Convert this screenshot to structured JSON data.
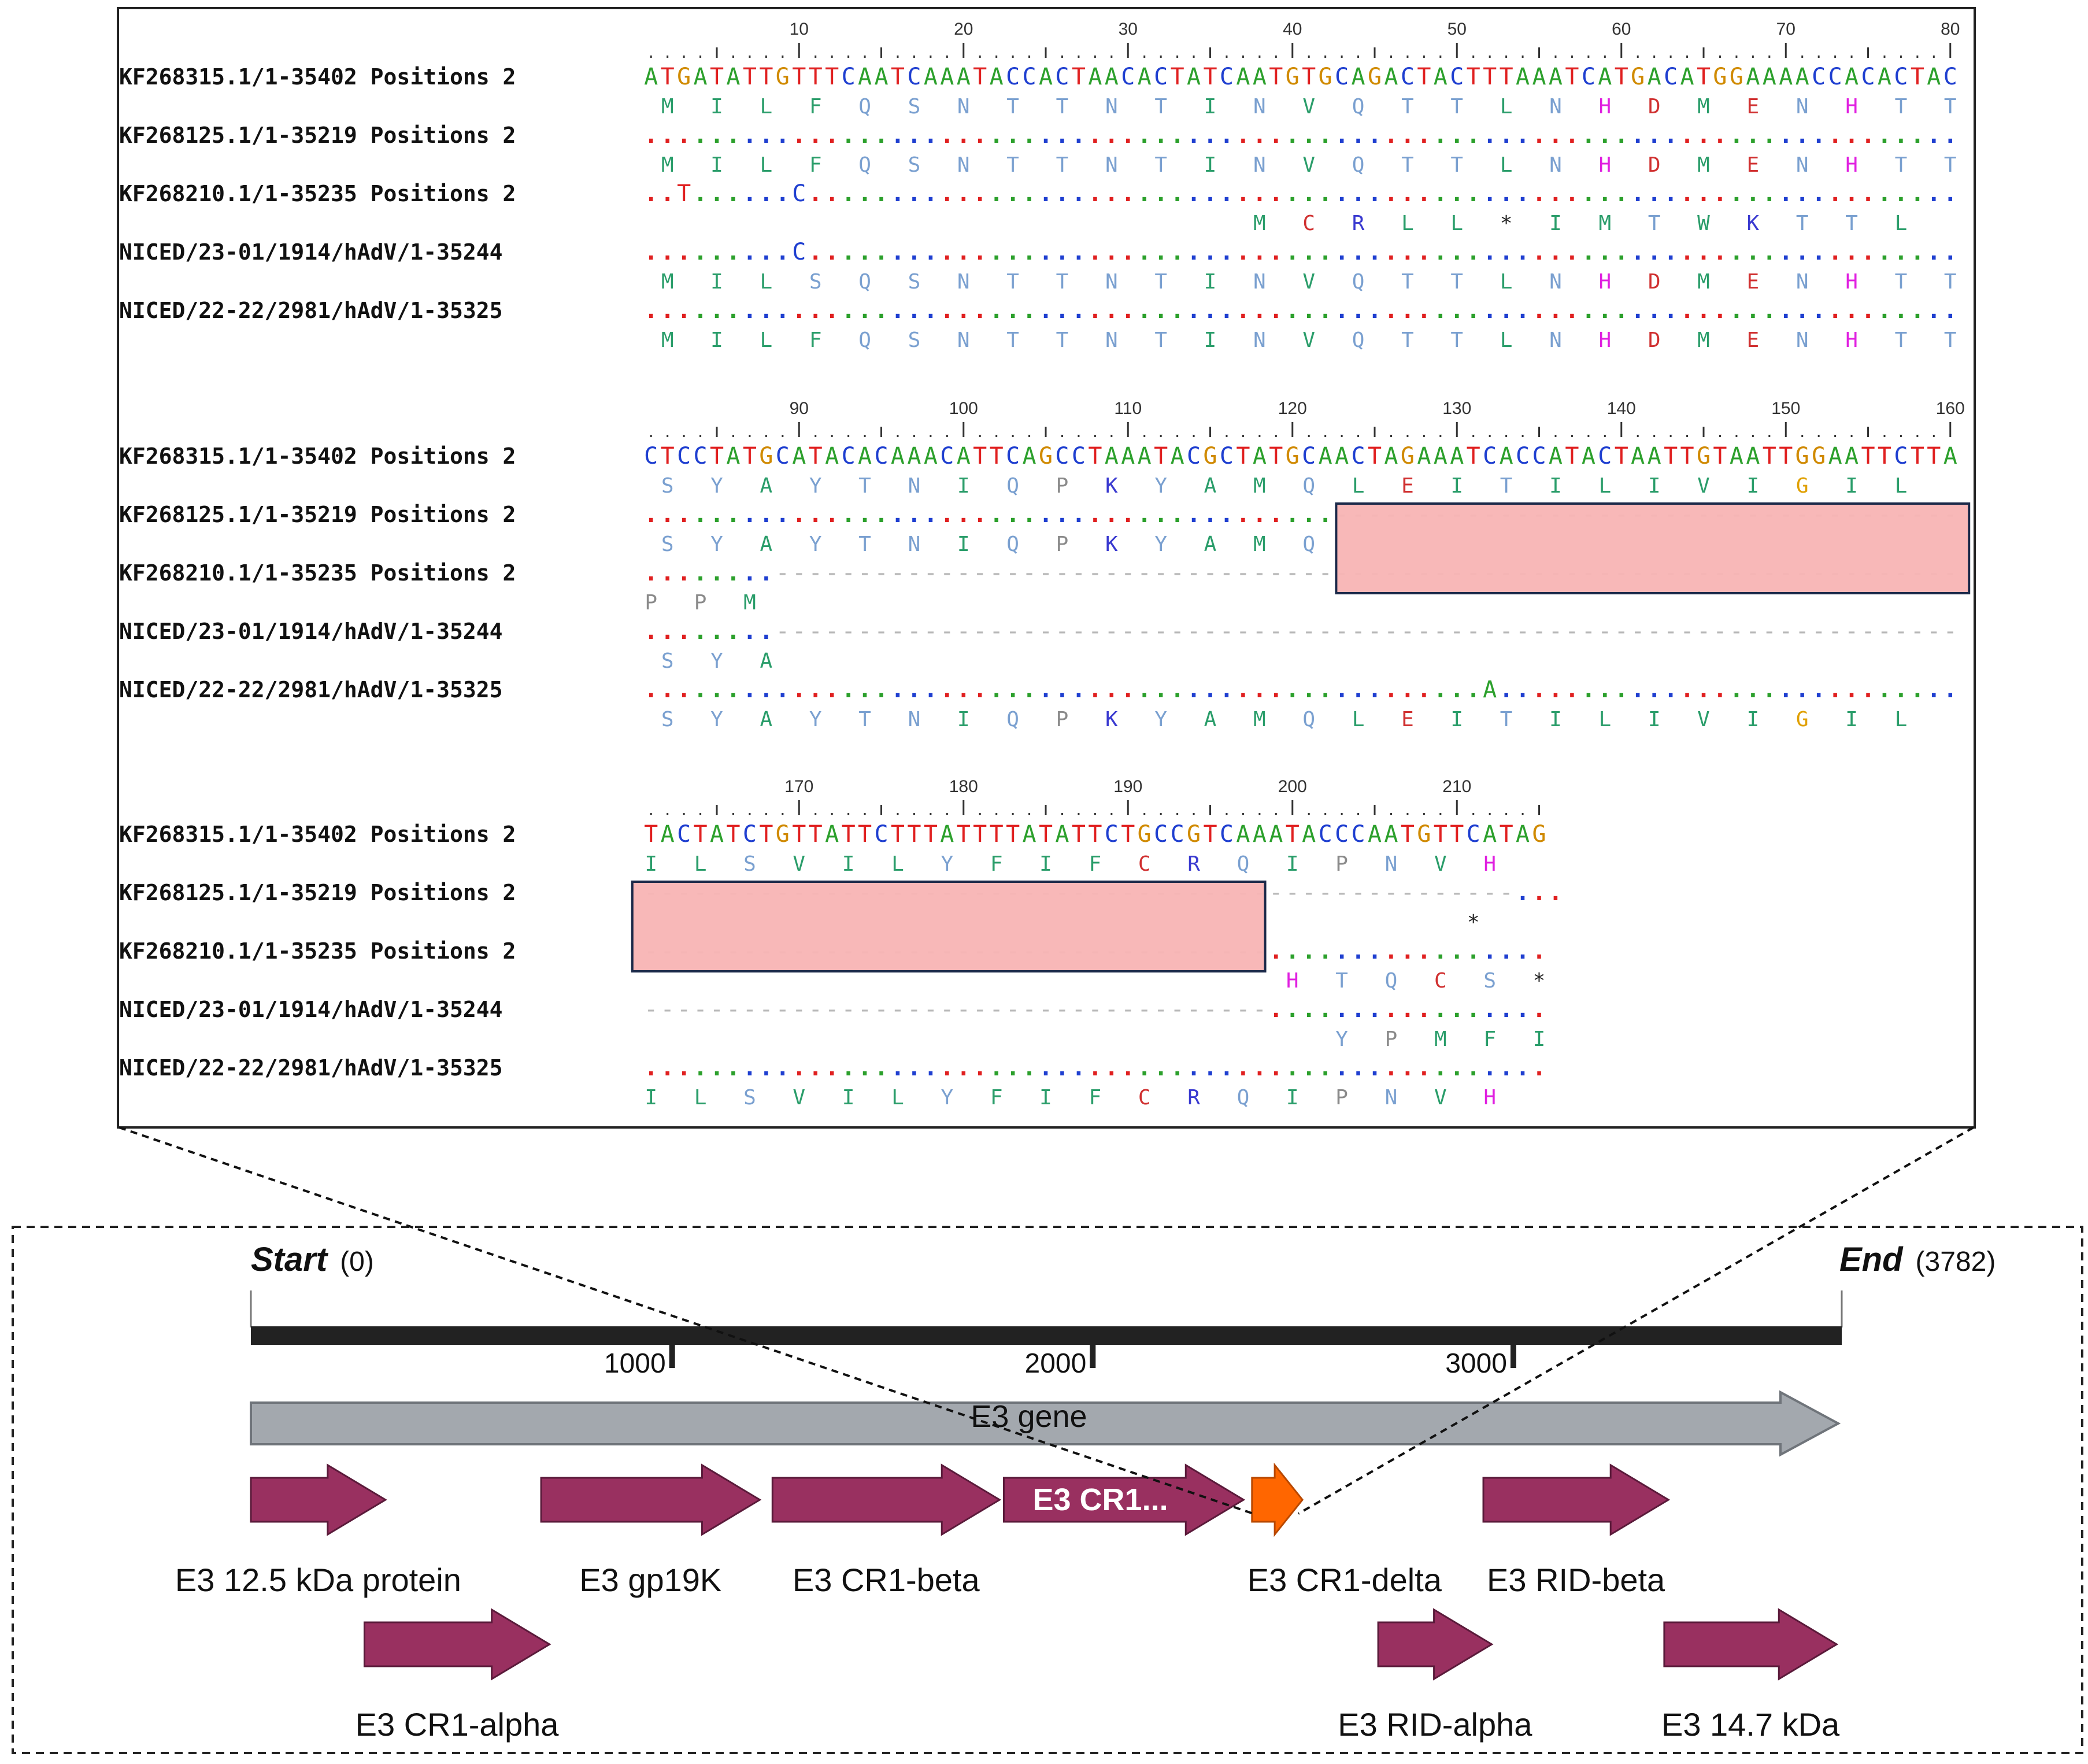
{
  "alignment": {
    "blocks": [
      {
        "start": 1,
        "ruler": [
          "10",
          "20",
          "30",
          "40",
          "50",
          "60",
          "70",
          "80"
        ],
        "rows": [
          {
            "name": "KF268315.1/1-35402 Positions 2",
            "nt": "ATGATATTGTTTCAATCAAATACCACTAACACTATCAATGTGCAGACTACTTTAAATCATGACATGGAAAACCACACTAC",
            "aa": " M  I  L  F  Q  S  N  T  T  N  T  I  N  V  Q  T  T  L  N  H  D  M  E  N  H  T  T"
          },
          {
            "name": "KF268125.1/1-35219 Positions 2",
            "nt": "................................................................................",
            "aa": " M  I  L  F  Q  S  N  T  T  N  T  I  N  V  Q  T  T  L  N  H  D  M  E  N  H  T  T"
          },
          {
            "name": "KF268210.1/1-35235 Positions 2",
            "nt": "..T......C......................................................................",
            "aa": "                                     M  C  R  L  L  *  I  M  T  W  K  T  T  L"
          },
          {
            "name": "NICED/23-01/1914/hAdV/1-35244",
            "nt": ".........C......................................................................",
            "aa": " M  I  L  S  Q  S  N  T  T  N  T  I  N  V  Q  T  T  L  N  H  D  M  E  N  H  T  T"
          },
          {
            "name": "NICED/22-22/2981/hAdV/1-35325",
            "nt": "................................................................................",
            "aa": " M  I  L  F  Q  S  N  T  T  N  T  I  N  V  Q  T  T  L  N  H  D  M  E  N  H  T  T"
          }
        ]
      },
      {
        "start": 81,
        "ruler": [
          "90",
          "100",
          "110",
          "120",
          "130",
          "140",
          "150",
          "160"
        ],
        "rows": [
          {
            "name": "KF268315.1/1-35402 Positions 2",
            "nt": "CTCCTATGCATACACAAACATTCAGCCTAAATACGCTATGCAACTAGAAATCACCATACTAATTGTAATTGGAATTCTTA",
            "aa": " S  Y  A  Y  T  N  I  Q  P  K  Y  A  M  Q  L  E  I  T  I  L  I  V  I  G  I  L"
          },
          {
            "name": "KF268125.1/1-35219 Positions 2",
            "nt": "..........................................--------------------------------------",
            "aa": " S  Y  A  Y  T  N  I  Q  P  K  Y  A  M  Q"
          },
          {
            "name": "KF268210.1/1-35235 Positions 2",
            "nt": "........------------------------------------------------------------------------",
            "aa": "P  P  M"
          },
          {
            "name": "NICED/23-01/1914/hAdV/1-35244",
            "nt": "........------------------------------------------------------------------------",
            "aa": " S  Y  A"
          },
          {
            "name": "NICED/22-22/2981/hAdV/1-35325",
            "nt": "...................................................A............................",
            "aa": " S  Y  A  Y  T  N  I  Q  P  K  Y  A  M  Q  L  E  I  T  I  L  I  V  I  G  I  L"
          }
        ]
      },
      {
        "start": 161,
        "ruler": [
          "170",
          "180",
          "190",
          "200",
          "210"
        ],
        "rows": [
          {
            "name": "KF268315.1/1-35402 Positions 2",
            "nt": "TACTATCTGTTATTCTTTATTTTATATTCTGCCGTCAAATACCCAATGTTCATAG",
            "aa": "I  L  S  V  I  L  Y  F  I  F  C  R  Q  I  P  N  V  H"
          },
          {
            "name": "KF268125.1/1-35219 Positions 2",
            "nt": "-----------------------------------------------------...",
            "aa": "                                                  *"
          },
          {
            "name": "KF268210.1/1-35235 Positions 2",
            "nt": "--------------------------------------.................",
            "aa": "                                       H  T  Q  C  S  *"
          },
          {
            "name": "NICED/23-01/1914/hAdV/1-35244",
            "nt": "--------------------------------------.................",
            "aa": "                                          Y  P  M  F  I"
          },
          {
            "name": "NICED/22-22/2981/hAdV/1-35325",
            "nt": ".......................................................",
            "aa": "I  L  S  V  I  L  Y  F  I  F  C  R  Q  I  P  N  V  H"
          }
        ]
      }
    ],
    "nt_colors": {
      "A": "#2ca02c",
      "C": "#1f3fd0",
      "G": "#d08a00",
      "T": "#e02020"
    },
    "aa_colors": {
      "H": "#e020e0",
      "D": "#d03030",
      "E": "#d03030",
      "C": "#d03030",
      "R": "#3a3ad0",
      "K": "#3a3ad0",
      "G": "#e0a000",
      "P": "#8a8a8a",
      "*": "#222222",
      "default": "#2a9d6a",
      "polar": "#7aa0d0"
    },
    "deletion_color": "#f8b4b4"
  },
  "gene_map": {
    "start_label": "Start",
    "start_value": "(0)",
    "end_label": "End",
    "end_value": "(3782)",
    "ticks": [
      "1000",
      "2000",
      "3000"
    ],
    "length": 3782,
    "e3_gene_label": "E3 gene",
    "genes": [
      {
        "name": "E3 12.5 kDa protein",
        "inner": "",
        "start": 0,
        "end": 320,
        "row": 1,
        "color": "#993060"
      },
      {
        "name": "E3 gp19K",
        "inner": "",
        "start": 690,
        "end": 1210,
        "row": 1,
        "color": "#993060"
      },
      {
        "name": "E3 CR1-beta",
        "inner": "",
        "start": 1240,
        "end": 1780,
        "row": 1,
        "color": "#993060"
      },
      {
        "name": "",
        "inner": "E3 CR1...",
        "start": 1790,
        "end": 2360,
        "row": 1,
        "color": "#993060"
      },
      {
        "name": "E3 CR1-delta",
        "inner": "",
        "start": 2380,
        "end": 2500,
        "row": 1,
        "color": "#ff6600"
      },
      {
        "name": "E3 RID-beta",
        "inner": "",
        "start": 2930,
        "end": 3370,
        "row": 1,
        "color": "#993060"
      },
      {
        "name": "E3 CR1-alpha",
        "inner": "",
        "start": 270,
        "end": 710,
        "row": 2,
        "color": "#993060"
      },
      {
        "name": "E3 RID-alpha",
        "inner": "",
        "start": 2680,
        "end": 2950,
        "row": 2,
        "color": "#993060"
      },
      {
        "name": "E3 14.7 kDa",
        "inner": "",
        "start": 3360,
        "end": 3770,
        "row": 2,
        "color": "#993060"
      }
    ]
  }
}
